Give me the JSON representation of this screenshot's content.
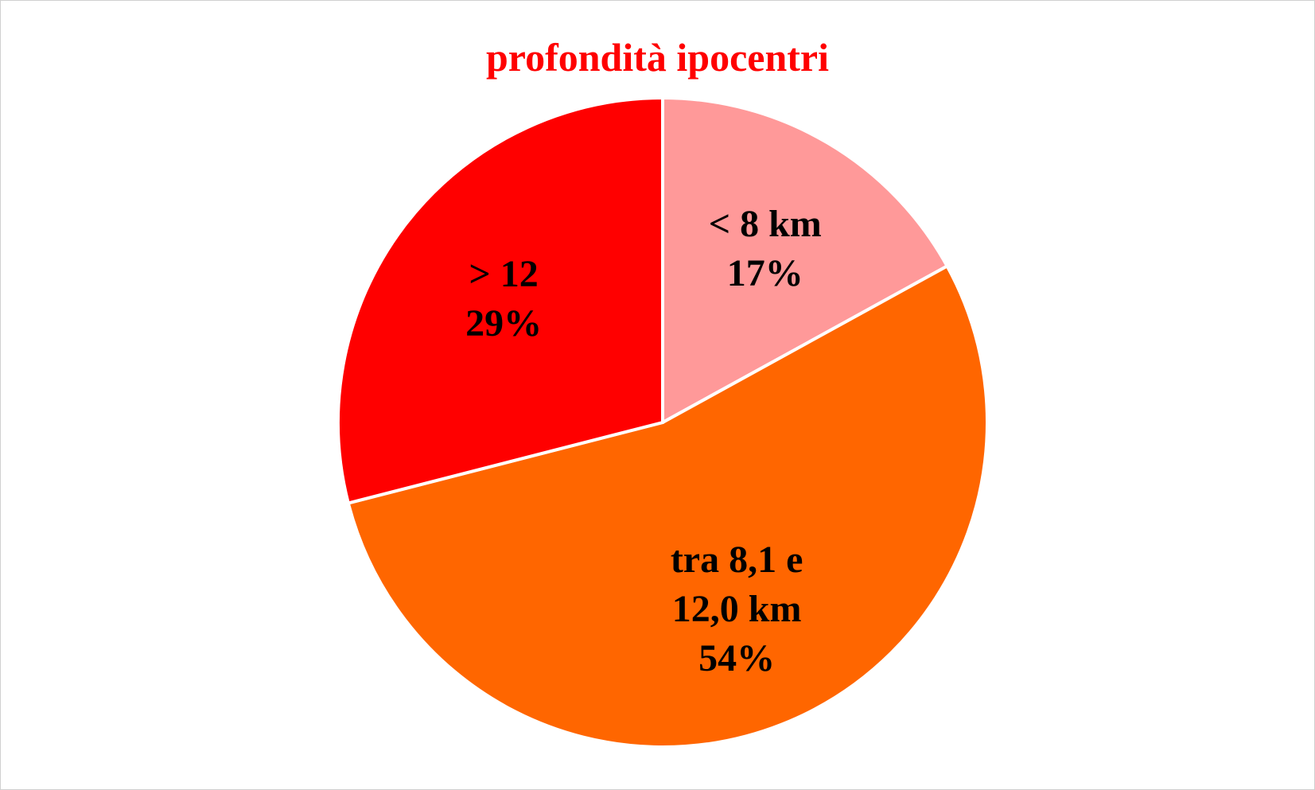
{
  "chart_data": {
    "type": "pie",
    "title": "profondità ipocentri",
    "categories": [
      "< 8 km",
      "tra 8,1 e 12,0 km",
      "> 12"
    ],
    "values": [
      17,
      54,
      29
    ],
    "value_labels": [
      "17%",
      "54%",
      "29%"
    ],
    "colors": [
      "#ff9999",
      "#ff6600",
      "#ff0000"
    ]
  }
}
